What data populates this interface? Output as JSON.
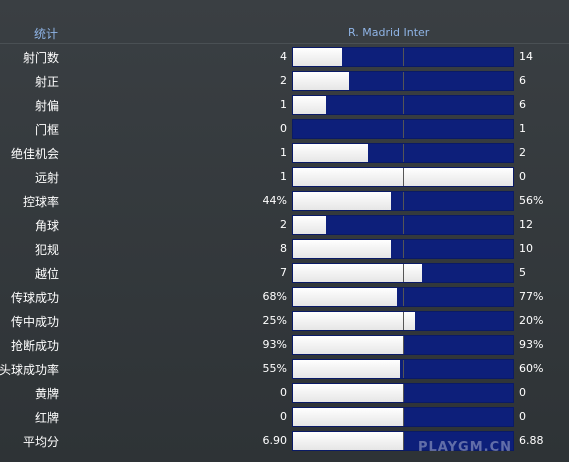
{
  "header": {
    "title": "统计",
    "teams": "R. Madrid Inter"
  },
  "rows": [
    {
      "label": "射门数",
      "left": "4",
      "right": "14",
      "home_share": 0.22
    },
    {
      "label": "射正",
      "left": "2",
      "right": "6",
      "home_share": 0.25
    },
    {
      "label": "射偏",
      "left": "1",
      "right": "6",
      "home_share": 0.15
    },
    {
      "label": "门框",
      "left": "0",
      "right": "1",
      "home_share": 0.0
    },
    {
      "label": "绝佳机会",
      "left": "1",
      "right": "2",
      "home_share": 0.34
    },
    {
      "label": "远射",
      "left": "1",
      "right": "0",
      "home_share": 1.0
    },
    {
      "label": "控球率",
      "left": "44%",
      "right": "56%",
      "home_share": 0.44
    },
    {
      "label": "角球",
      "left": "2",
      "right": "12",
      "home_share": 0.15
    },
    {
      "label": "犯规",
      "left": "8",
      "right": "10",
      "home_share": 0.44
    },
    {
      "label": "越位",
      "left": "7",
      "right": "5",
      "home_share": 0.58
    },
    {
      "label": "传球成功",
      "left": "68%",
      "right": "77%",
      "home_share": 0.47
    },
    {
      "label": "传中成功",
      "left": "25%",
      "right": "20%",
      "home_share": 0.55
    },
    {
      "label": "抢断成功",
      "left": "93%",
      "right": "93%",
      "home_share": 0.5
    },
    {
      "label": "头球成功率",
      "left": "55%",
      "right": "60%",
      "home_share": 0.48
    },
    {
      "label": "黄牌",
      "left": "0",
      "right": "0",
      "home_share": 0.5
    },
    {
      "label": "红牌",
      "left": "0",
      "right": "0",
      "home_share": 0.5
    },
    {
      "label": "平均分",
      "left": "6.90",
      "right": "6.88",
      "home_share": 0.5
    }
  ],
  "watermark": "PLAYGM.CN",
  "colors": {
    "accent_text": "#8fb4e6",
    "away_bar": "#0d1f7a",
    "home_bar": "#ffffff"
  }
}
